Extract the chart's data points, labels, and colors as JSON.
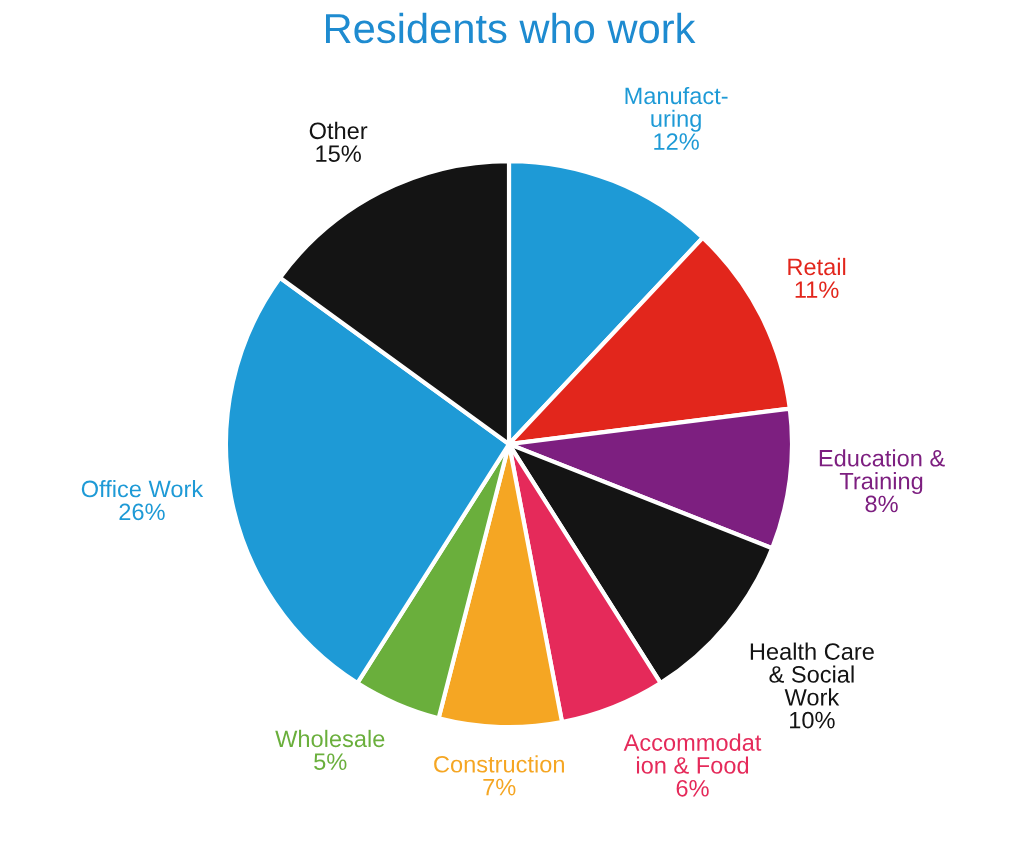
{
  "chart_data": {
    "type": "pie",
    "title": "Residents who work",
    "categories": [
      "Manufact-\nuring",
      "Retail",
      "Education &\nTraining",
      "Health Care\n& Social\nWork",
      "Accommodat\nion & Food",
      "Construction",
      "Wholesale",
      "Office Work",
      "Other"
    ],
    "values": [
      12,
      11,
      8,
      10,
      6,
      7,
      5,
      26,
      15
    ],
    "value_labels": [
      "12%",
      "11%",
      "8%",
      "10%",
      "6%",
      "7%",
      "5%",
      "26%",
      "15%"
    ],
    "colors": [
      "#1e9ad6",
      "#e2261c",
      "#7d1f80",
      "#141414",
      "#e52a5a",
      "#f5a623",
      "#6aaf3c",
      "#1e9ad6",
      "#141414"
    ]
  }
}
